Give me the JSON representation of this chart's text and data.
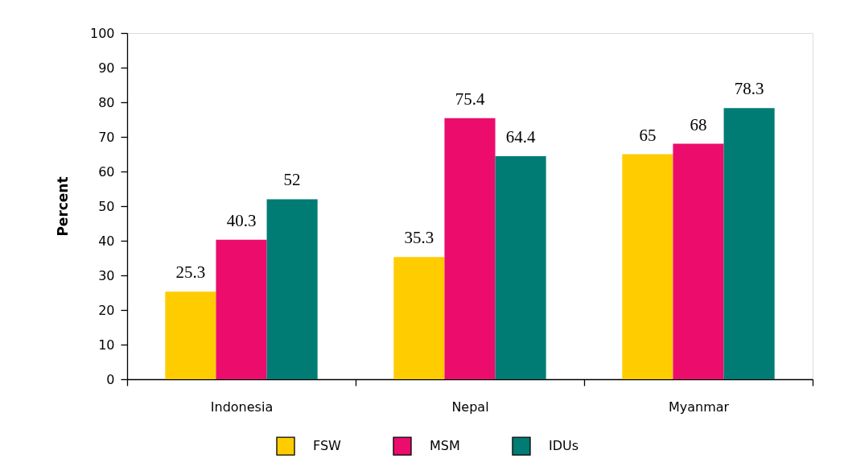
{
  "chart_data": {
    "type": "bar",
    "ylabel": "Percent",
    "categories": [
      "Indonesia",
      "Nepal",
      "Myanmar"
    ],
    "series": [
      {
        "name": "FSW",
        "color": "#ffcc00",
        "values": [
          25.3,
          35.3,
          65
        ]
      },
      {
        "name": "MSM",
        "color": "#ec0c6c",
        "values": [
          40.3,
          75.4,
          68
        ]
      },
      {
        "name": "IDUs",
        "color": "#007c74",
        "values": [
          52,
          64.4,
          78.3
        ]
      }
    ],
    "ylim": [
      0,
      100
    ],
    "yticks": [
      0,
      10,
      20,
      30,
      40,
      50,
      60,
      70,
      80,
      90,
      100
    ],
    "data_labels": true,
    "legend": "bottom"
  }
}
